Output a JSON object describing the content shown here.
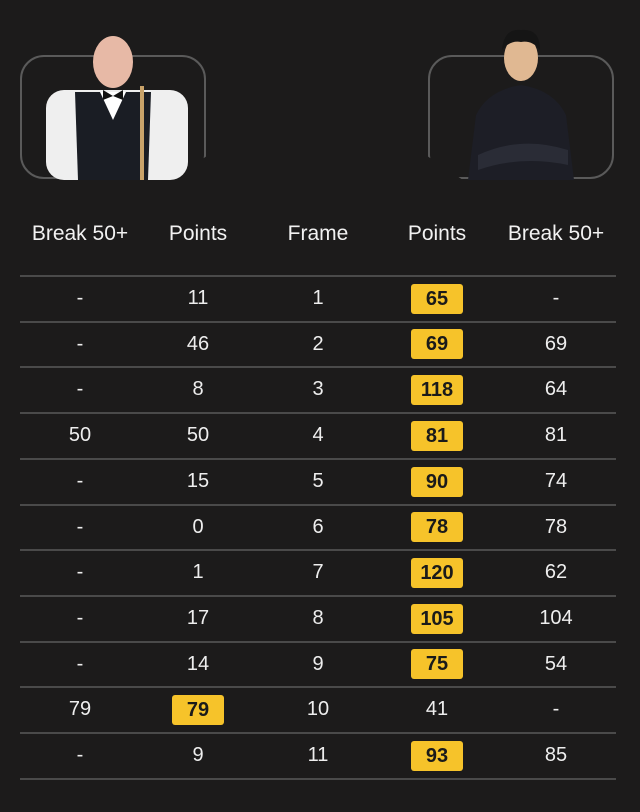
{
  "players": [
    {
      "side": "left",
      "icon": "player-photo-white-shirt-waistcoat"
    },
    {
      "side": "right",
      "icon": "player-photo-dark-shirt"
    }
  ],
  "headers": [
    "Break 50+",
    "Points",
    "Frame",
    "Points",
    "Break 50+"
  ],
  "highlight_color": "#f6c32a",
  "rows": [
    {
      "l_break": "-",
      "l_points": "11",
      "frame": "1",
      "r_points": "65",
      "r_break": "-",
      "winner": "right"
    },
    {
      "l_break": "-",
      "l_points": "46",
      "frame": "2",
      "r_points": "69",
      "r_break": "69",
      "winner": "right"
    },
    {
      "l_break": "-",
      "l_points": "8",
      "frame": "3",
      "r_points": "118",
      "r_break": "64",
      "winner": "right"
    },
    {
      "l_break": "50",
      "l_points": "50",
      "frame": "4",
      "r_points": "81",
      "r_break": "81",
      "winner": "right"
    },
    {
      "l_break": "-",
      "l_points": "15",
      "frame": "5",
      "r_points": "90",
      "r_break": "74",
      "winner": "right"
    },
    {
      "l_break": "-",
      "l_points": "0",
      "frame": "6",
      "r_points": "78",
      "r_break": "78",
      "winner": "right"
    },
    {
      "l_break": "-",
      "l_points": "1",
      "frame": "7",
      "r_points": "120",
      "r_break": "62",
      "winner": "right"
    },
    {
      "l_break": "-",
      "l_points": "17",
      "frame": "8",
      "r_points": "105",
      "r_break": "104",
      "winner": "right"
    },
    {
      "l_break": "-",
      "l_points": "14",
      "frame": "9",
      "r_points": "75",
      "r_break": "54",
      "winner": "right"
    },
    {
      "l_break": "79",
      "l_points": "79",
      "frame": "10",
      "r_points": "41",
      "r_break": "-",
      "winner": "left"
    },
    {
      "l_break": "-",
      "l_points": "9",
      "frame": "11",
      "r_points": "93",
      "r_break": "85",
      "winner": "right"
    }
  ]
}
